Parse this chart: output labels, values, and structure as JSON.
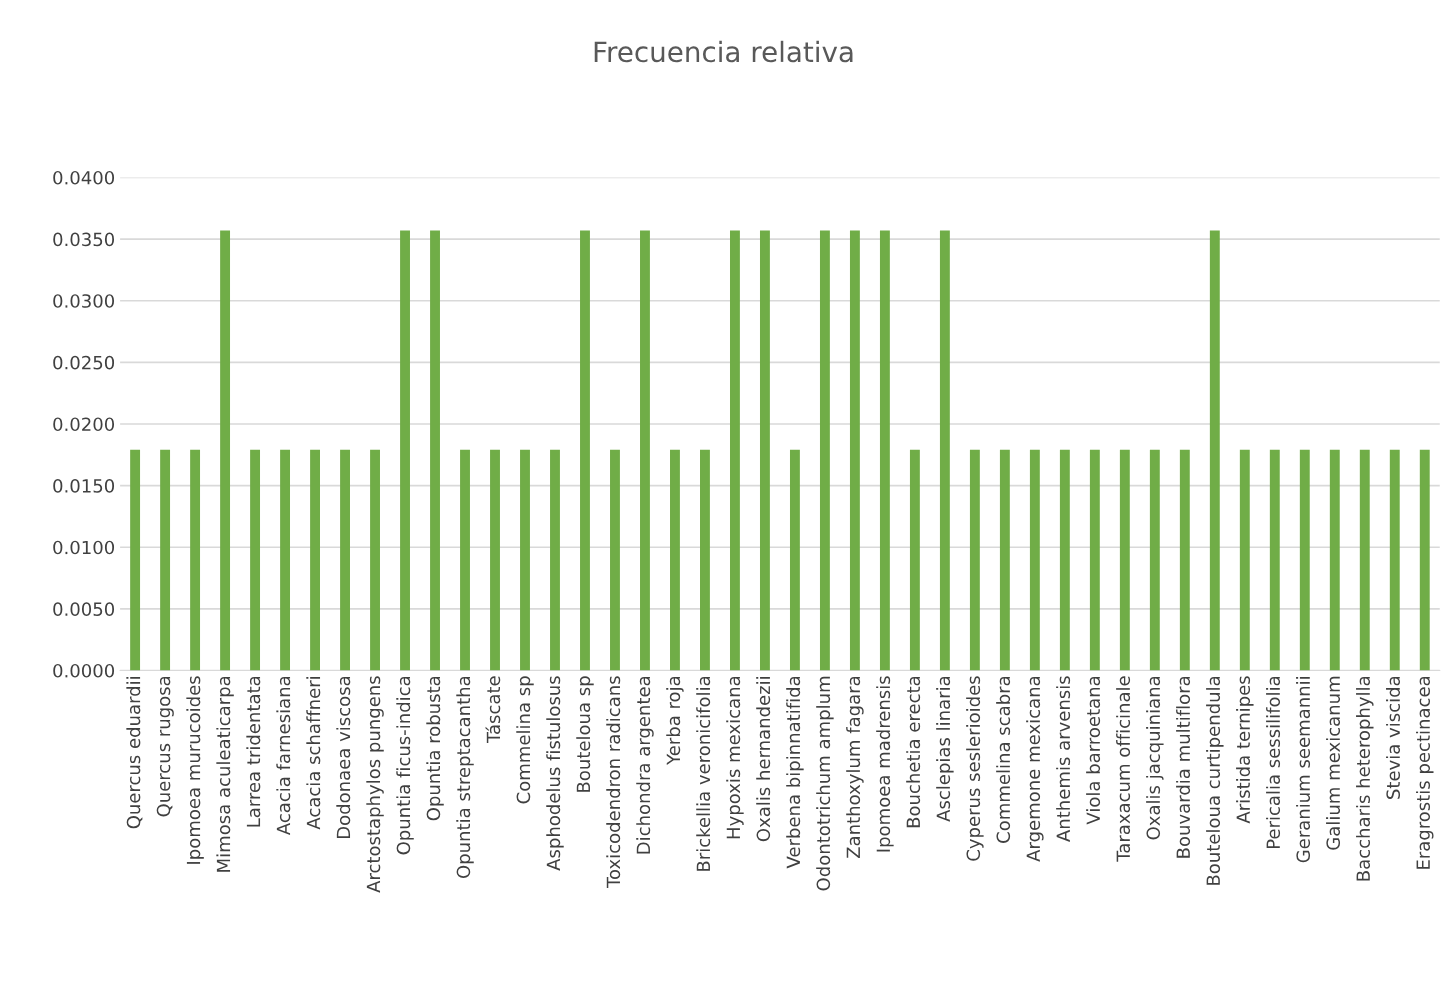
{
  "chart_data": {
    "type": "bar",
    "title": "Frecuencia relativa",
    "categories": [
      "Quercus eduardii",
      "Quercus rugosa",
      "Ipomoea murucoides",
      "Mimosa aculeaticarpa",
      "Larrea tridentata",
      "Acacia farnesiana",
      "Acacia schaffneri",
      "Dodonaea viscosa",
      "Arctostaphylos pungens",
      "Opuntia ficus-indica",
      "Opuntia robusta",
      "Opuntia streptacantha",
      "Táscate",
      "Commelina sp",
      "Asphodelus fistulosus",
      "Bouteloua sp",
      "Toxicodendron radicans",
      "Dichondra argentea",
      "Yerba roja",
      "Brickellia veronicifolia",
      "Hypoxis mexicana",
      "Oxalis hernandezii",
      "Verbena bipinnatifida",
      "Odontotrichum amplum",
      "Zanthoxylum fagara",
      "Ipomoea madrensis",
      "Bouchetia erecta",
      "Asclepias linaria",
      "Cyperus seslerioides",
      "Commelina scabra",
      "Argemone mexicana",
      "Anthemis arvensis",
      "Viola barroetana",
      "Taraxacum officinale",
      "Oxalis jacquiniana",
      "Bouvardia multiflora",
      "Bouteloua curtipendula",
      "Aristida ternipes",
      "Pericalia sessilifolia",
      "Geranium seemannii",
      "Galium mexicanum",
      "Baccharis heterophylla",
      "Stevia viscida",
      "Eragrostis pectinacea"
    ],
    "values": [
      0.0179,
      0.0179,
      0.0179,
      0.0357,
      0.0179,
      0.0179,
      0.0179,
      0.0179,
      0.0179,
      0.0357,
      0.0357,
      0.0179,
      0.0179,
      0.0179,
      0.0179,
      0.0357,
      0.0179,
      0.0357,
      0.0179,
      0.0179,
      0.0357,
      0.0357,
      0.0179,
      0.0357,
      0.0357,
      0.0357,
      0.0179,
      0.0357,
      0.0179,
      0.0179,
      0.0179,
      0.0179,
      0.0179,
      0.0179,
      0.0179,
      0.0179,
      0.0357,
      0.0179,
      0.0179,
      0.0179,
      0.0179,
      0.0179,
      0.0179,
      0.0179
    ],
    "color": "#70ad47",
    "ylim": [
      0,
      0.04
    ],
    "yticks": [
      {
        "value": 0,
        "label": "0.0000"
      },
      {
        "value": 0.005,
        "label": "0.0050"
      },
      {
        "value": 0.01,
        "label": "0.0100"
      },
      {
        "value": 0.015,
        "label": "0.0150"
      },
      {
        "value": 0.02,
        "label": "0.0200"
      },
      {
        "value": 0.025,
        "label": "0.0250"
      },
      {
        "value": 0.03,
        "label": "0.0300"
      },
      {
        "value": 0.035,
        "label": "0.0350"
      },
      {
        "value": 0.04,
        "label": "0.0400"
      }
    ],
    "grid": "y",
    "legend": false
  }
}
